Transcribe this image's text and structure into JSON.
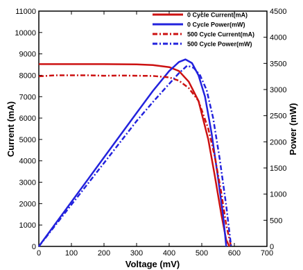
{
  "chart_data": {
    "type": "line",
    "xlabel": "Voltage (mV)",
    "ylabel_left": "Current (mA)",
    "ylabel_right": "Power (mW)",
    "xlim": [
      0,
      700
    ],
    "ylim_left": [
      0,
      11000
    ],
    "ylim_right": [
      0,
      4500
    ],
    "x_ticks": [
      0,
      100,
      200,
      300,
      400,
      500,
      600,
      700
    ],
    "y_left_ticks": [
      0,
      1000,
      2000,
      3000,
      4000,
      5000,
      6000,
      7000,
      8000,
      9000,
      10000,
      11000
    ],
    "y_right_ticks": [
      0,
      500,
      1000,
      1500,
      2000,
      2500,
      3000,
      3500,
      4000,
      4500
    ],
    "legend_position": "top-right",
    "series": [
      {
        "name": "0 Cycle Current(mA)",
        "axis": "left",
        "color": "#cc1111",
        "dash": "solid",
        "x": [
          0,
          100,
          200,
          300,
          350,
          400,
          430,
          460,
          490,
          520,
          540,
          560,
          575,
          585
        ],
        "y": [
          8520,
          8520,
          8520,
          8510,
          8480,
          8380,
          8200,
          7700,
          6800,
          5000,
          3300,
          1500,
          300,
          0
        ]
      },
      {
        "name": "0 Cycle Power(mW)",
        "axis": "left",
        "color": "#2222dd",
        "dash": "solid",
        "x": [
          0,
          100,
          200,
          300,
          350,
          400,
          430,
          450,
          470,
          490,
          510,
          530,
          550,
          565,
          575
        ],
        "y": [
          0,
          2080,
          4160,
          6240,
          7270,
          8200,
          8620,
          8740,
          8570,
          8000,
          7000,
          5300,
          3200,
          1500,
          0
        ]
      },
      {
        "name": "500 Cycle Current(mA)",
        "axis": "left",
        "color": "#cc1111",
        "dash": "dashdot",
        "x": [
          0,
          50,
          100,
          150,
          200,
          250,
          300,
          350,
          400,
          430,
          460,
          490,
          520,
          540,
          560,
          575,
          590
        ],
        "y": [
          7950,
          8000,
          8000,
          8000,
          7980,
          7990,
          7980,
          7970,
          7900,
          7750,
          7400,
          6800,
          5500,
          4200,
          2500,
          1000,
          0
        ]
      },
      {
        "name": "500 Cycle Power(mW)",
        "axis": "left",
        "color": "#2222dd",
        "dash": "dashdot",
        "x": [
          0,
          100,
          200,
          300,
          350,
          400,
          430,
          455,
          475,
          495,
          515,
          535,
          555,
          575,
          590
        ],
        "y": [
          0,
          1950,
          3900,
          5860,
          6750,
          7600,
          8100,
          8450,
          8350,
          8000,
          7300,
          6000,
          4100,
          1900,
          0
        ]
      }
    ]
  }
}
